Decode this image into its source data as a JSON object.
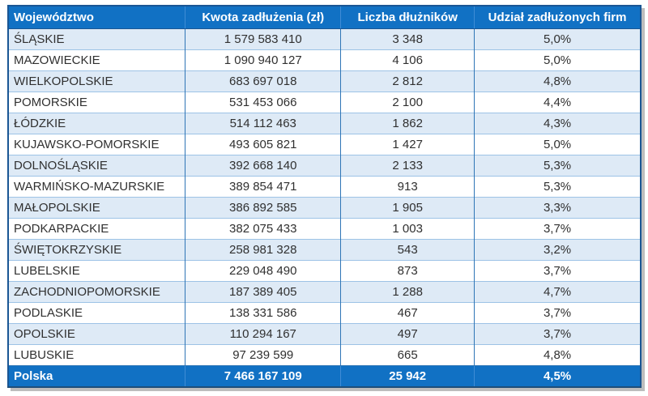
{
  "chart_data": {
    "type": "table",
    "title": "",
    "columns": [
      {
        "label": "Województwo",
        "align": "left"
      },
      {
        "label": "Kwota zadłużenia (zł)",
        "align": "center"
      },
      {
        "label": "Liczba dłużników",
        "align": "center"
      },
      {
        "label": "Udział zadłużonych firm",
        "align": "center"
      }
    ],
    "rows": [
      [
        "ŚLĄSKIE",
        "1 579 583 410",
        "3 348",
        "5,0%"
      ],
      [
        "MAZOWIECKIE",
        "1 090 940 127",
        "4 106",
        "5,0%"
      ],
      [
        "WIELKOPOLSKIE",
        "683 697 018",
        "2 812",
        "4,8%"
      ],
      [
        "POMORSKIE",
        "531 453 066",
        "2 100",
        "4,4%"
      ],
      [
        "ŁÓDZKIE",
        "514 112 463",
        "1 862",
        "4,3%"
      ],
      [
        "KUJAWSKO-POMORSKIE",
        "493 605 821",
        "1 427",
        "5,0%"
      ],
      [
        "DOLNOŚLĄSKIE",
        "392 668 140",
        "2 133",
        "5,3%"
      ],
      [
        "WARMIŃSKO-MAZURSKIE",
        "389 854 471",
        "913",
        "5,3%"
      ],
      [
        "MAŁOPOLSKIE",
        "386 892 585",
        "1 905",
        "3,3%"
      ],
      [
        "PODKARPACKIE",
        "382 075 433",
        "1 003",
        "3,7%"
      ],
      [
        "ŚWIĘTOKRZYSKIE",
        "258 981 328",
        "543",
        "3,2%"
      ],
      [
        "LUBELSKIE",
        "229 048 490",
        "873",
        "3,7%"
      ],
      [
        "ZACHODNIOPOMORSKIE",
        "187 389 405",
        "1 288",
        "4,7%"
      ],
      [
        "PODLASKIE",
        "138 331 586",
        "467",
        "3,7%"
      ],
      [
        "OPOLSKIE",
        "110 294 167",
        "497",
        "3,7%"
      ],
      [
        "LUBUSKIE",
        "97 239 599",
        "665",
        "4,8%"
      ]
    ],
    "footer": [
      "Polska",
      "7 466 167 109",
      "25 942",
      "4,5%"
    ]
  },
  "colors": {
    "header_bg": "#1171C4",
    "header_text": "#FFFFFF",
    "row_alt_bg": "#DEEAF6",
    "row_bg": "#FFFFFF",
    "grid_horizontal": "#9DC3E6",
    "grid_vertical": "#2E75B6",
    "header_separator": "#3F8CD5",
    "outer_border": "#1A5694",
    "bottom_border": "#1F4E79",
    "body_text": "#303030",
    "shadow": "#BDBDBD"
  }
}
